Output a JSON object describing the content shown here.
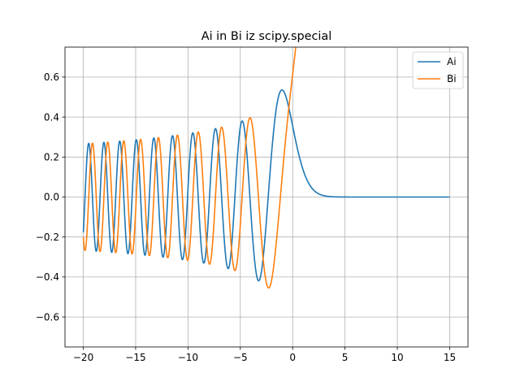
{
  "chart_data": {
    "type": "line",
    "title": "Ai in Bi iz scipy.special",
    "xlabel": "",
    "ylabel": "",
    "xlim": [
      -21.75,
      16.75
    ],
    "ylim": [
      -0.75,
      0.75
    ],
    "x_ticks": [
      -20,
      -15,
      -10,
      -5,
      0,
      5,
      10,
      15
    ],
    "x_tick_labels": [
      "−20",
      "−15",
      "−10",
      "−5",
      "0",
      "5",
      "10",
      "15"
    ],
    "y_ticks": [
      -0.6,
      -0.4,
      -0.2,
      0.0,
      0.2,
      0.4,
      0.6
    ],
    "y_tick_labels": [
      "−0.6",
      "−0.4",
      "−0.2",
      "0.0",
      "0.2",
      "0.4",
      "0.6"
    ],
    "grid": true,
    "legend_position": "top-right",
    "x_range": [
      -20,
      15
    ],
    "series": [
      {
        "name": "Ai",
        "color": "#1f77b4",
        "function": "airy_ai"
      },
      {
        "name": "Bi",
        "color": "#ff7f0e",
        "function": "airy_bi"
      }
    ]
  }
}
